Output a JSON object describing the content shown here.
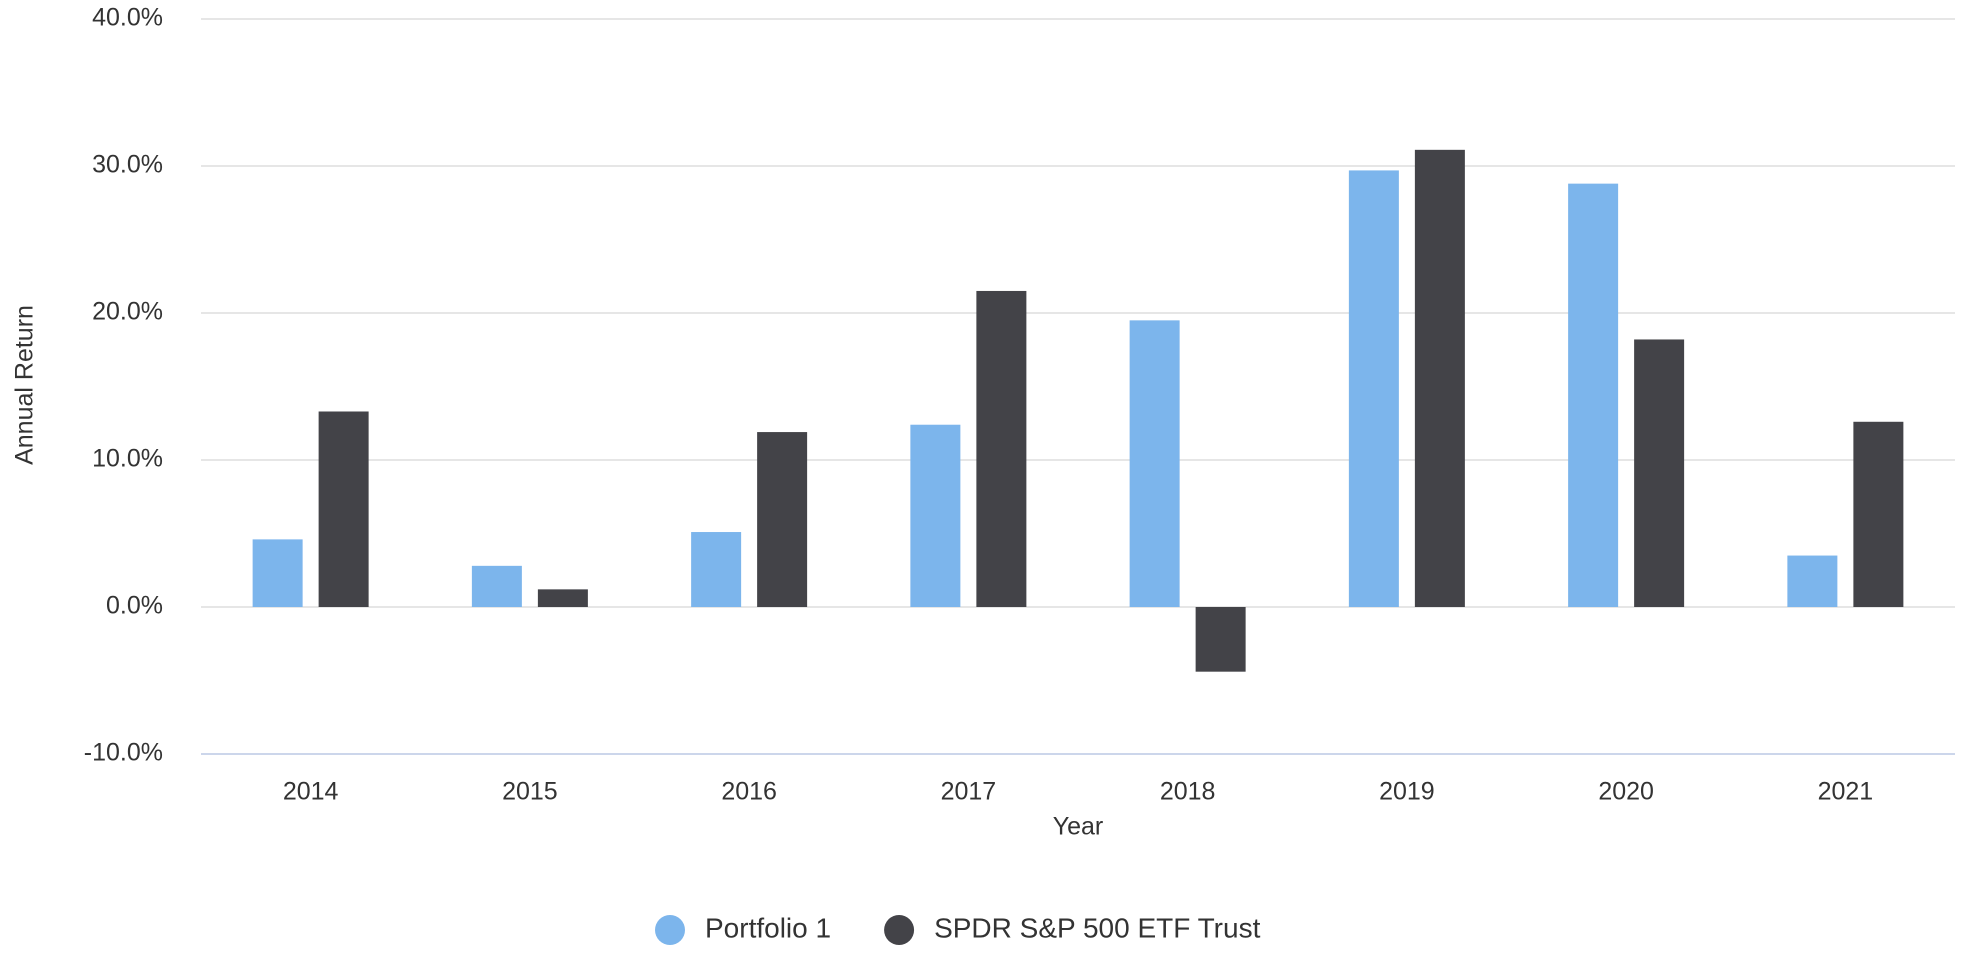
{
  "chart_data": {
    "type": "bar",
    "xlabel": "Year",
    "ylabel": "Annual Return",
    "categories": [
      "2014",
      "2015",
      "2016",
      "2017",
      "2018",
      "2019",
      "2020",
      "2021"
    ],
    "series": [
      {
        "name": "Portfolio 1",
        "color": "#7cb5ec",
        "values": [
          4.6,
          2.8,
          5.1,
          12.4,
          19.5,
          29.7,
          28.8,
          3.5
        ]
      },
      {
        "name": "SPDR S&P 500 ETF Trust",
        "color": "#434348",
        "values": [
          13.3,
          1.2,
          11.9,
          21.5,
          -4.4,
          31.1,
          18.2,
          12.6
        ]
      }
    ],
    "ylim": [
      -10,
      40
    ],
    "yticks": [
      {
        "value": -10,
        "label": "-10.0%"
      },
      {
        "value": 0,
        "label": "0.0%"
      },
      {
        "value": 10,
        "label": "10.0%"
      },
      {
        "value": 20,
        "label": "20.0%"
      },
      {
        "value": 30,
        "label": "30.0%"
      },
      {
        "value": 40,
        "label": "40.0%"
      }
    ],
    "grid": true,
    "legend": "bottom"
  }
}
